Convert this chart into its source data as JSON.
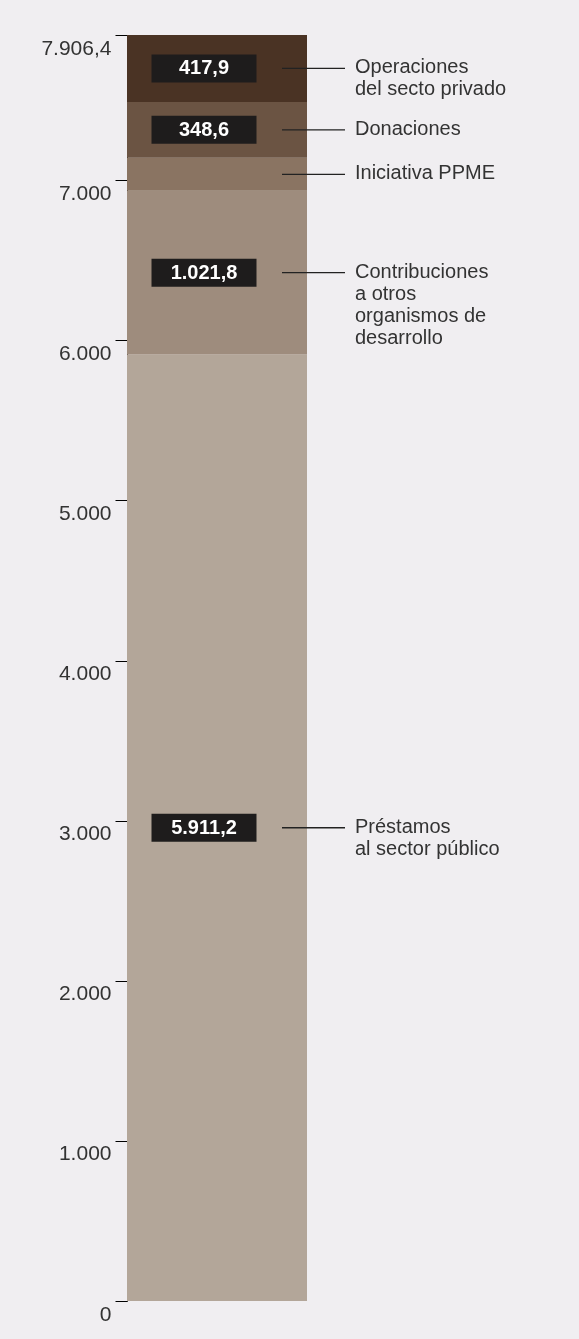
{
  "chart_data": {
    "type": "bar",
    "stacked": true,
    "categories": [
      null
    ],
    "series": [
      {
        "name": "Préstamos\nal sector público",
        "color": "#b3a699",
        "values": [
          5911.2
        ],
        "value_labels": [
          "5.911,2"
        ]
      },
      {
        "name": "Contribuciones\na otros\norganismos de\ndesarrollo",
        "color": "#9e8c7d",
        "values": [
          1021.8
        ],
        "value_labels": [
          "1.021,8"
        ]
      },
      {
        "name": "Iniciativa PPME",
        "color": "#8a7462",
        "values": [
          207
        ],
        "value_labels": [
          null
        ]
      },
      {
        "name": "Donaciones",
        "color": "#6b5443",
        "values": [
          348.6
        ],
        "value_labels": [
          "348,6"
        ]
      },
      {
        "name": "Operaciones\ndel secto privado",
        "color": "#4a3324",
        "values": [
          417.9
        ],
        "value_labels": [
          "417,9"
        ]
      }
    ],
    "ylim": [
      0,
      7906.4
    ],
    "yticks": [
      0,
      {
        "value": 1000,
        "label": "1.000"
      },
      {
        "value": 2000,
        "label": "2.000"
      },
      {
        "value": 3000,
        "label": "3.000"
      },
      {
        "value": 4000,
        "label": "4.000"
      },
      {
        "value": 5000,
        "label": "5.000"
      },
      {
        "value": 6000,
        "label": "6.000"
      },
      {
        "value": 7000,
        "label": "7.000"
      },
      {
        "value": 7906.4,
        "label": "7.906,4"
      }
    ],
    "grid": false
  }
}
